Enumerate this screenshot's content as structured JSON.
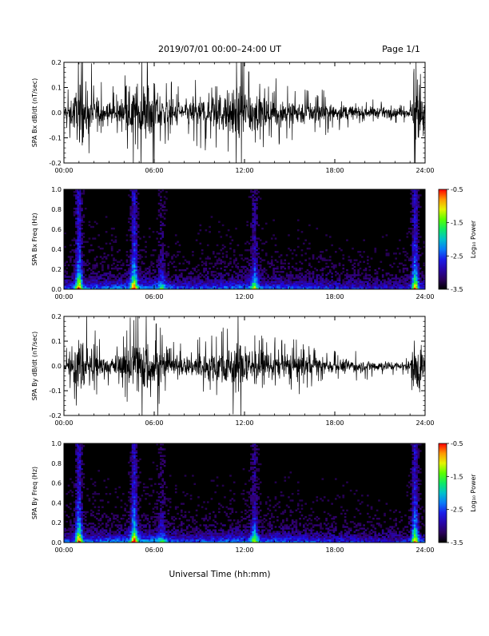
{
  "header": {
    "title": "2019/07/01   00:00–24:00 UT",
    "page": "Page 1/1"
  },
  "chart_data": [
    {
      "type": "line",
      "ylabel": "SPA Bx dB/dt (nT/sec)",
      "ylim": [
        -0.2,
        0.2
      ],
      "yticks": [
        "-0.2",
        "-0.1",
        "0.0",
        "0.1",
        "0.2"
      ],
      "xlim": [
        "00:00",
        "24:00"
      ],
      "xticks": [
        "00:00",
        "06:00",
        "12:00",
        "18:00",
        "24:00"
      ],
      "series": [
        {
          "amplitude_envelope": {
            "x": [
              "00:00",
              "00:30",
              "01:00",
              "01:20",
              "02:00",
              "03:00",
              "04:00",
              "04:40",
              "05:00",
              "05:30",
              "06:00",
              "06:30",
              "07:00",
              "08:00",
              "09:00",
              "10:00",
              "11:00",
              "11:40",
              "12:00",
              "12:30",
              "13:00",
              "14:00",
              "15:00",
              "16:00",
              "17:00",
              "18:00",
              "19:00",
              "20:00",
              "21:00",
              "22:00",
              "23:00",
              "23:20",
              "23:40",
              "24:00"
            ],
            "y": [
              0.05,
              0.1,
              0.2,
              0.2,
              0.12,
              0.07,
              0.1,
              0.2,
              0.2,
              0.2,
              0.2,
              0.12,
              0.09,
              0.08,
              0.1,
              0.12,
              0.15,
              0.2,
              0.2,
              0.16,
              0.12,
              0.1,
              0.09,
              0.08,
              0.07,
              0.06,
              0.05,
              0.04,
              0.04,
              0.03,
              0.03,
              0.2,
              0.2,
              0.06
            ]
          }
        }
      ]
    },
    {
      "type": "heatmap",
      "ylabel": "SPA Bx Freq (Hz)",
      "ylim": [
        0.0,
        1.0
      ],
      "yticks": [
        "0.0",
        "0.2",
        "0.4",
        "0.6",
        "0.8",
        "1.0"
      ],
      "xlim": [
        "00:00",
        "24:00"
      ],
      "xticks": [
        "00:00",
        "06:00",
        "12:00",
        "18:00",
        "24:00"
      ],
      "colorbar": {
        "label": "Log₁₀ Power",
        "range": [
          -3.5,
          -0.5
        ],
        "ticks": [
          "-0.5",
          "-1.5",
          "-2.5",
          "-3.5"
        ]
      },
      "bursts": {
        "x": [
          "01:00",
          "04:40",
          "06:30",
          "12:40",
          "23:20"
        ],
        "log_power_peak": [
          -1.5,
          -1.5,
          -2.8,
          -2.2,
          -1.5
        ]
      }
    },
    {
      "type": "line",
      "ylabel": "SPA By dB/dt (nT/sec)",
      "ylim": [
        -0.2,
        0.2
      ],
      "yticks": [
        "-0.2",
        "-0.1",
        "0.0",
        "0.1",
        "0.2"
      ],
      "xlim": [
        "00:00",
        "24:00"
      ],
      "xticks": [
        "00:00",
        "06:00",
        "12:00",
        "18:00",
        "24:00"
      ],
      "series": [
        {
          "amplitude_envelope": {
            "x": [
              "00:00",
              "00:30",
              "01:00",
              "01:20",
              "02:00",
              "03:00",
              "04:00",
              "04:40",
              "05:00",
              "05:30",
              "06:00",
              "06:30",
              "07:00",
              "08:00",
              "09:00",
              "10:00",
              "11:00",
              "11:40",
              "12:00",
              "12:30",
              "13:00",
              "14:00",
              "15:00",
              "16:00",
              "17:00",
              "18:00",
              "19:00",
              "20:00",
              "21:00",
              "22:00",
              "23:00",
              "23:20",
              "23:40",
              "24:00"
            ],
            "y": [
              0.04,
              0.08,
              0.2,
              0.2,
              0.11,
              0.06,
              0.09,
              0.2,
              0.2,
              0.2,
              0.2,
              0.11,
              0.08,
              0.07,
              0.09,
              0.11,
              0.14,
              0.18,
              0.2,
              0.15,
              0.11,
              0.09,
              0.09,
              0.08,
              0.06,
              0.05,
              0.05,
              0.04,
              0.04,
              0.03,
              0.03,
              0.2,
              0.2,
              0.05
            ]
          }
        }
      ]
    },
    {
      "type": "heatmap",
      "ylabel": "SPA By Freq (Hz)",
      "ylim": [
        0.0,
        1.0
      ],
      "yticks": [
        "0.0",
        "0.2",
        "0.4",
        "0.6",
        "0.8",
        "1.0"
      ],
      "xlim": [
        "00:00",
        "24:00"
      ],
      "xticks": [
        "00:00",
        "06:00",
        "12:00",
        "18:00",
        "24:00"
      ],
      "colorbar": {
        "label": "Log₁₀ Power",
        "range": [
          -3.5,
          -0.5
        ],
        "ticks": [
          "-0.5",
          "-1.5",
          "-2.5",
          "-3.5"
        ]
      },
      "bursts": {
        "x": [
          "01:00",
          "04:40",
          "06:30",
          "12:40",
          "23:20"
        ],
        "log_power_peak": [
          -1.5,
          -1.5,
          -2.8,
          -2.2,
          -1.5
        ]
      }
    }
  ],
  "footer": {
    "xlabel": "Universal Time (hh:mm)"
  }
}
